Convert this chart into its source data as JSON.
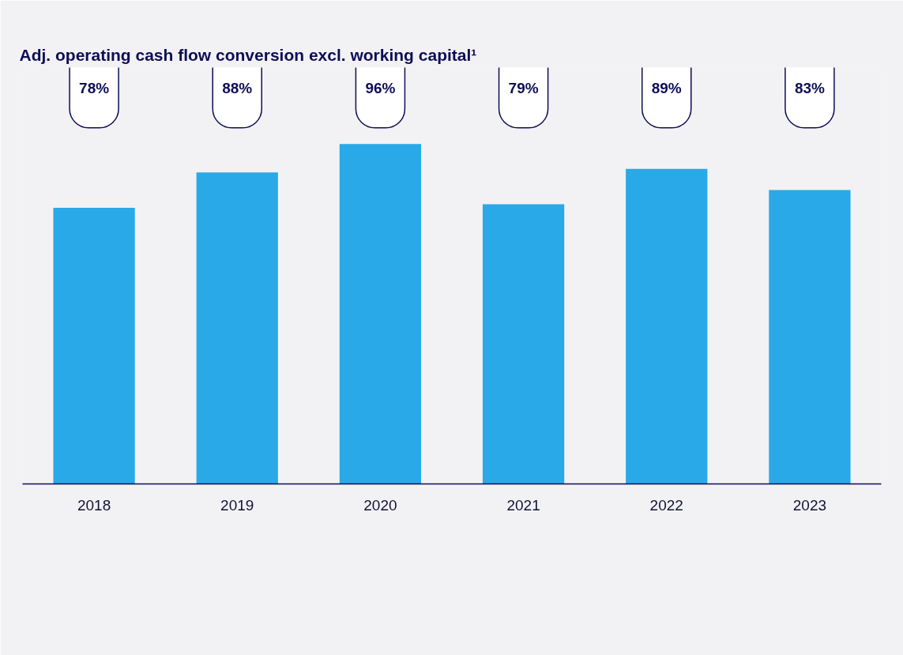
{
  "chart_data": {
    "type": "bar",
    "title": "Adj. operating cash flow conversion excl. working capital¹",
    "categories": [
      "2018",
      "2019",
      "2020",
      "2021",
      "2022",
      "2023"
    ],
    "values": [
      78,
      88,
      96,
      79,
      89,
      83
    ],
    "value_labels": [
      "78%",
      "88%",
      "96%",
      "79%",
      "89%",
      "83%"
    ],
    "color": "#29a9e8",
    "grid": false
  }
}
